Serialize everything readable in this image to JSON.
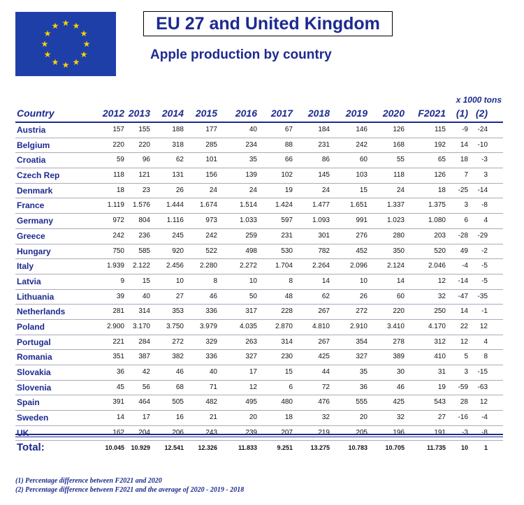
{
  "header": {
    "title": "EU 27 and United Kingdom",
    "subtitle": "Apple production by country",
    "units": "x 1000 tons"
  },
  "flag": {
    "name": "EU flag",
    "blue": "#1f3fa8",
    "gold": "#ffd200"
  },
  "table": {
    "columns": [
      "Country",
      "2012",
      "2013",
      "2014",
      "2015",
      "2016",
      "2017",
      "2018",
      "2019",
      "2020",
      "F2021",
      "(1)",
      "(2)"
    ],
    "rows": [
      [
        "Austria",
        "157",
        "155",
        "188",
        "177",
        "40",
        "67",
        "184",
        "146",
        "126",
        "115",
        "-9",
        "-24"
      ],
      [
        "Belgium",
        "220",
        "220",
        "318",
        "285",
        "234",
        "88",
        "231",
        "242",
        "168",
        "192",
        "14",
        "-10"
      ],
      [
        "Croatia",
        "59",
        "96",
        "62",
        "101",
        "35",
        "66",
        "86",
        "60",
        "55",
        "65",
        "18",
        "-3"
      ],
      [
        "Czech Rep",
        "118",
        "121",
        "131",
        "156",
        "139",
        "102",
        "145",
        "103",
        "118",
        "126",
        "7",
        "3"
      ],
      [
        "Denmark",
        "18",
        "23",
        "26",
        "24",
        "24",
        "19",
        "24",
        "15",
        "24",
        "18",
        "-25",
        "-14"
      ],
      [
        "France",
        "1.119",
        "1.576",
        "1.444",
        "1.674",
        "1.514",
        "1.424",
        "1.477",
        "1.651",
        "1.337",
        "1.375",
        "3",
        "-8"
      ],
      [
        "Germany",
        "972",
        "804",
        "1.116",
        "973",
        "1.033",
        "597",
        "1.093",
        "991",
        "1.023",
        "1.080",
        "6",
        "4"
      ],
      [
        "Greece",
        "242",
        "236",
        "245",
        "242",
        "259",
        "231",
        "301",
        "276",
        "280",
        "203",
        "-28",
        "-29"
      ],
      [
        "Hungary",
        "750",
        "585",
        "920",
        "522",
        "498",
        "530",
        "782",
        "452",
        "350",
        "520",
        "49",
        "-2"
      ],
      [
        "Italy",
        "1.939",
        "2.122",
        "2.456",
        "2.280",
        "2.272",
        "1.704",
        "2.264",
        "2.096",
        "2.124",
        "2.046",
        "-4",
        "-5"
      ],
      [
        "Latvia",
        "9",
        "15",
        "10",
        "8",
        "10",
        "8",
        "14",
        "10",
        "14",
        "12",
        "-14",
        "-5"
      ],
      [
        "Lithuania",
        "39",
        "40",
        "27",
        "46",
        "50",
        "48",
        "62",
        "26",
        "60",
        "32",
        "-47",
        "-35"
      ],
      [
        "Netherlands",
        "281",
        "314",
        "353",
        "336",
        "317",
        "228",
        "267",
        "272",
        "220",
        "250",
        "14",
        "-1"
      ],
      [
        "Poland",
        "2.900",
        "3.170",
        "3.750",
        "3.979",
        "4.035",
        "2.870",
        "4.810",
        "2.910",
        "3.410",
        "4.170",
        "22",
        "12"
      ],
      [
        "Portugal",
        "221",
        "284",
        "272",
        "329",
        "263",
        "314",
        "267",
        "354",
        "278",
        "312",
        "12",
        "4"
      ],
      [
        "Romania",
        "351",
        "387",
        "382",
        "336",
        "327",
        "230",
        "425",
        "327",
        "389",
        "410",
        "5",
        "8"
      ],
      [
        "Slovakia",
        "36",
        "42",
        "46",
        "40",
        "17",
        "15",
        "44",
        "35",
        "30",
        "31",
        "3",
        "-15"
      ],
      [
        "Slovenia",
        "45",
        "56",
        "68",
        "71",
        "12",
        "6",
        "72",
        "36",
        "46",
        "19",
        "-59",
        "-63"
      ],
      [
        "Spain",
        "391",
        "464",
        "505",
        "482",
        "495",
        "480",
        "476",
        "555",
        "425",
        "543",
        "28",
        "12"
      ],
      [
        "Sweden",
        "14",
        "17",
        "16",
        "21",
        "20",
        "18",
        "32",
        "20",
        "32",
        "27",
        "-16",
        "-4"
      ],
      [
        "UK",
        "162",
        "204",
        "206",
        "243",
        "239",
        "207",
        "219",
        "205",
        "196",
        "191",
        "-3",
        "-8"
      ]
    ],
    "total": [
      "Total:",
      "10.045",
      "10.929",
      "12.541",
      "12.326",
      "11.833",
      "9.251",
      "13.275",
      "10.783",
      "10.705",
      "11.735",
      "10",
      "1"
    ]
  },
  "notes": [
    "(1) Percentage difference between F2021 and 2020",
    "(2) Percentage difference between F2021 and the average of 2020 - 2019 - 2018"
  ]
}
